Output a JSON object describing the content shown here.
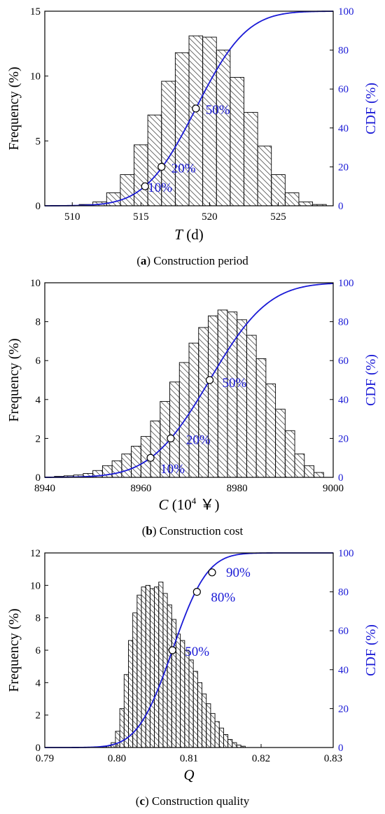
{
  "chart_data": [
    {
      "type": "bar",
      "panel": "a",
      "caption_letter": "a",
      "caption_text": "Construction period",
      "xlabel_symbol": "T",
      "xlabel_unit": " (d)",
      "ylabel": "Frequency (%)",
      "ylabel_right": "CDF (%)",
      "xlim": [
        508,
        529
      ],
      "ylim": [
        0,
        15
      ],
      "ylim_right": [
        0,
        100
      ],
      "xticks": [
        "510",
        "515",
        "520",
        "525"
      ],
      "xtick_values": [
        510,
        515,
        520,
        525
      ],
      "yticks": [
        "0",
        "5",
        "10",
        "15"
      ],
      "ytick_values": [
        0,
        5,
        10,
        15
      ],
      "yticks_right": [
        "0",
        "20",
        "40",
        "60",
        "80",
        "100"
      ],
      "ytick_right_values": [
        0,
        20,
        40,
        60,
        80,
        100
      ],
      "bin_width": 1,
      "bins": [
        {
          "x": 511,
          "value": 0.1
        },
        {
          "x": 512,
          "value": 0.3
        },
        {
          "x": 513,
          "value": 1.0
        },
        {
          "x": 514,
          "value": 2.4
        },
        {
          "x": 515,
          "value": 4.7
        },
        {
          "x": 516,
          "value": 7.0
        },
        {
          "x": 517,
          "value": 9.6
        },
        {
          "x": 518,
          "value": 11.8
        },
        {
          "x": 519,
          "value": 13.1
        },
        {
          "x": 520,
          "value": 13.0
        },
        {
          "x": 521,
          "value": 12.0
        },
        {
          "x": 522,
          "value": 9.9
        },
        {
          "x": 523,
          "value": 7.2
        },
        {
          "x": 524,
          "value": 4.6
        },
        {
          "x": 525,
          "value": 2.4
        },
        {
          "x": 526,
          "value": 1.0
        },
        {
          "x": 527,
          "value": 0.3
        },
        {
          "x": 528,
          "value": 0.1
        }
      ],
      "cdf_line": {
        "mean": 519,
        "sd": 2.9,
        "color": "#1a1ad6"
      },
      "markers": [
        {
          "x": 515.3,
          "cdf": 10,
          "label": "10%",
          "label_dx": 4,
          "label_dy": 8
        },
        {
          "x": 516.5,
          "cdf": 20,
          "label": "20%",
          "label_dx": 14,
          "label_dy": 8
        },
        {
          "x": 519.0,
          "cdf": 50,
          "label": "50%",
          "label_dx": 14,
          "label_dy": 8
        }
      ]
    },
    {
      "type": "bar",
      "panel": "b",
      "caption_letter": "b",
      "caption_text": "Construction cost",
      "xlabel_symbol": "C",
      "xlabel_unit": " (10",
      "xlabel_sup": "4",
      "xlabel_tail": " ￥)",
      "ylabel": "Frequency (%)",
      "ylabel_right": "CDF (%)",
      "xlim": [
        8940,
        9000
      ],
      "ylim": [
        0,
        10
      ],
      "ylim_right": [
        0,
        100
      ],
      "xticks": [
        "8940",
        "8960",
        "8980",
        "9000"
      ],
      "xtick_values": [
        8940,
        8960,
        8980,
        9000
      ],
      "yticks": [
        "0",
        "2",
        "4",
        "6",
        "8",
        "10"
      ],
      "ytick_values": [
        0,
        2,
        4,
        6,
        8,
        10
      ],
      "yticks_right": [
        "0",
        "20",
        "40",
        "60",
        "80",
        "100"
      ],
      "ytick_right_values": [
        0,
        20,
        40,
        60,
        80,
        100
      ],
      "bin_width": 2,
      "bins": [
        {
          "x": 8943,
          "value": 0.05
        },
        {
          "x": 8945,
          "value": 0.08
        },
        {
          "x": 8947,
          "value": 0.12
        },
        {
          "x": 8949,
          "value": 0.2
        },
        {
          "x": 8951,
          "value": 0.35
        },
        {
          "x": 8953,
          "value": 0.6
        },
        {
          "x": 8955,
          "value": 0.85
        },
        {
          "x": 8957,
          "value": 1.2
        },
        {
          "x": 8959,
          "value": 1.6
        },
        {
          "x": 8961,
          "value": 2.1
        },
        {
          "x": 8963,
          "value": 2.9
        },
        {
          "x": 8965,
          "value": 3.9
        },
        {
          "x": 8967,
          "value": 4.9
        },
        {
          "x": 8969,
          "value": 5.9
        },
        {
          "x": 8971,
          "value": 6.9
        },
        {
          "x": 8973,
          "value": 7.7
        },
        {
          "x": 8975,
          "value": 8.3
        },
        {
          "x": 8977,
          "value": 8.6
        },
        {
          "x": 8979,
          "value": 8.5
        },
        {
          "x": 8981,
          "value": 8.1
        },
        {
          "x": 8983,
          "value": 7.3
        },
        {
          "x": 8985,
          "value": 6.1
        },
        {
          "x": 8987,
          "value": 4.8
        },
        {
          "x": 8989,
          "value": 3.5
        },
        {
          "x": 8991,
          "value": 2.4
        },
        {
          "x": 8993,
          "value": 1.2
        },
        {
          "x": 8995,
          "value": 0.6
        },
        {
          "x": 8997,
          "value": 0.25
        }
      ],
      "cdf_line": {
        "mean": 8974.3,
        "sd": 9.6,
        "color": "#1a1ad6"
      },
      "markers": [
        {
          "x": 8962.0,
          "cdf": 10,
          "label": "10%",
          "label_dx": 14,
          "label_dy": 22
        },
        {
          "x": 8966.2,
          "cdf": 20,
          "label": "20%",
          "label_dx": 22,
          "label_dy": 8
        },
        {
          "x": 8974.3,
          "cdf": 50,
          "label": "50%",
          "label_dx": 18,
          "label_dy": 10
        }
      ]
    },
    {
      "type": "bar",
      "panel": "c",
      "caption_letter": "c",
      "caption_text": "Construction quality",
      "xlabel_symbol": "Q",
      "xlabel_unit": "",
      "ylabel": "Frequency (%)",
      "ylabel_right": "CDF (%)",
      "xlim": [
        0.79,
        0.83
      ],
      "ylim": [
        0,
        12
      ],
      "ylim_right": [
        0,
        100
      ],
      "xticks": [
        "0.79",
        "0.80",
        "0.81",
        "0.82",
        "0.83"
      ],
      "xtick_values": [
        0.79,
        0.8,
        0.81,
        0.82,
        0.83
      ],
      "yticks": [
        "0",
        "2",
        "4",
        "6",
        "8",
        "10",
        "12"
      ],
      "ytick_values": [
        0,
        2,
        4,
        6,
        8,
        10,
        12
      ],
      "yticks_right": [
        "0",
        "20",
        "40",
        "60",
        "80",
        "100"
      ],
      "ytick_right_values": [
        0,
        20,
        40,
        60,
        80,
        100
      ],
      "bin_width": 0.0006,
      "bins": [
        {
          "x": 0.7983,
          "value": 0.05
        },
        {
          "x": 0.7989,
          "value": 0.1
        },
        {
          "x": 0.7995,
          "value": 0.3
        },
        {
          "x": 0.8001,
          "value": 1.0
        },
        {
          "x": 0.8007,
          "value": 2.4
        },
        {
          "x": 0.8013,
          "value": 4.5
        },
        {
          "x": 0.8019,
          "value": 6.6
        },
        {
          "x": 0.8025,
          "value": 8.3
        },
        {
          "x": 0.8031,
          "value": 9.4
        },
        {
          "x": 0.8037,
          "value": 9.9
        },
        {
          "x": 0.8043,
          "value": 10.0
        },
        {
          "x": 0.8049,
          "value": 9.8
        },
        {
          "x": 0.8055,
          "value": 9.9
        },
        {
          "x": 0.8061,
          "value": 10.2
        },
        {
          "x": 0.8067,
          "value": 9.5
        },
        {
          "x": 0.8073,
          "value": 8.8
        },
        {
          "x": 0.8079,
          "value": 7.9
        },
        {
          "x": 0.8085,
          "value": 7.0
        },
        {
          "x": 0.8091,
          "value": 6.6
        },
        {
          "x": 0.8097,
          "value": 6.0
        },
        {
          "x": 0.8103,
          "value": 5.4
        },
        {
          "x": 0.8109,
          "value": 4.7
        },
        {
          "x": 0.8115,
          "value": 4.0
        },
        {
          "x": 0.8121,
          "value": 3.3
        },
        {
          "x": 0.8127,
          "value": 2.7
        },
        {
          "x": 0.8133,
          "value": 2.1
        },
        {
          "x": 0.8139,
          "value": 1.6
        },
        {
          "x": 0.8145,
          "value": 1.2
        },
        {
          "x": 0.8151,
          "value": 0.8
        },
        {
          "x": 0.8157,
          "value": 0.5
        },
        {
          "x": 0.8163,
          "value": 0.3
        },
        {
          "x": 0.8169,
          "value": 0.15
        },
        {
          "x": 0.8175,
          "value": 0.08
        }
      ],
      "cdf_line": {
        "mean": 0.8077,
        "sd": 0.0038,
        "color": "#1a1ad6"
      },
      "markers": [
        {
          "x": 0.8077,
          "cdf": 50,
          "label": "50%",
          "label_dx": 18,
          "label_dy": 8
        },
        {
          "x": 0.8111,
          "cdf": 80,
          "label": "80%",
          "label_dx": 20,
          "label_dy": 14
        },
        {
          "x": 0.8132,
          "cdf": 90,
          "label": "90%",
          "label_dx": 20,
          "label_dy": 6
        }
      ]
    }
  ]
}
